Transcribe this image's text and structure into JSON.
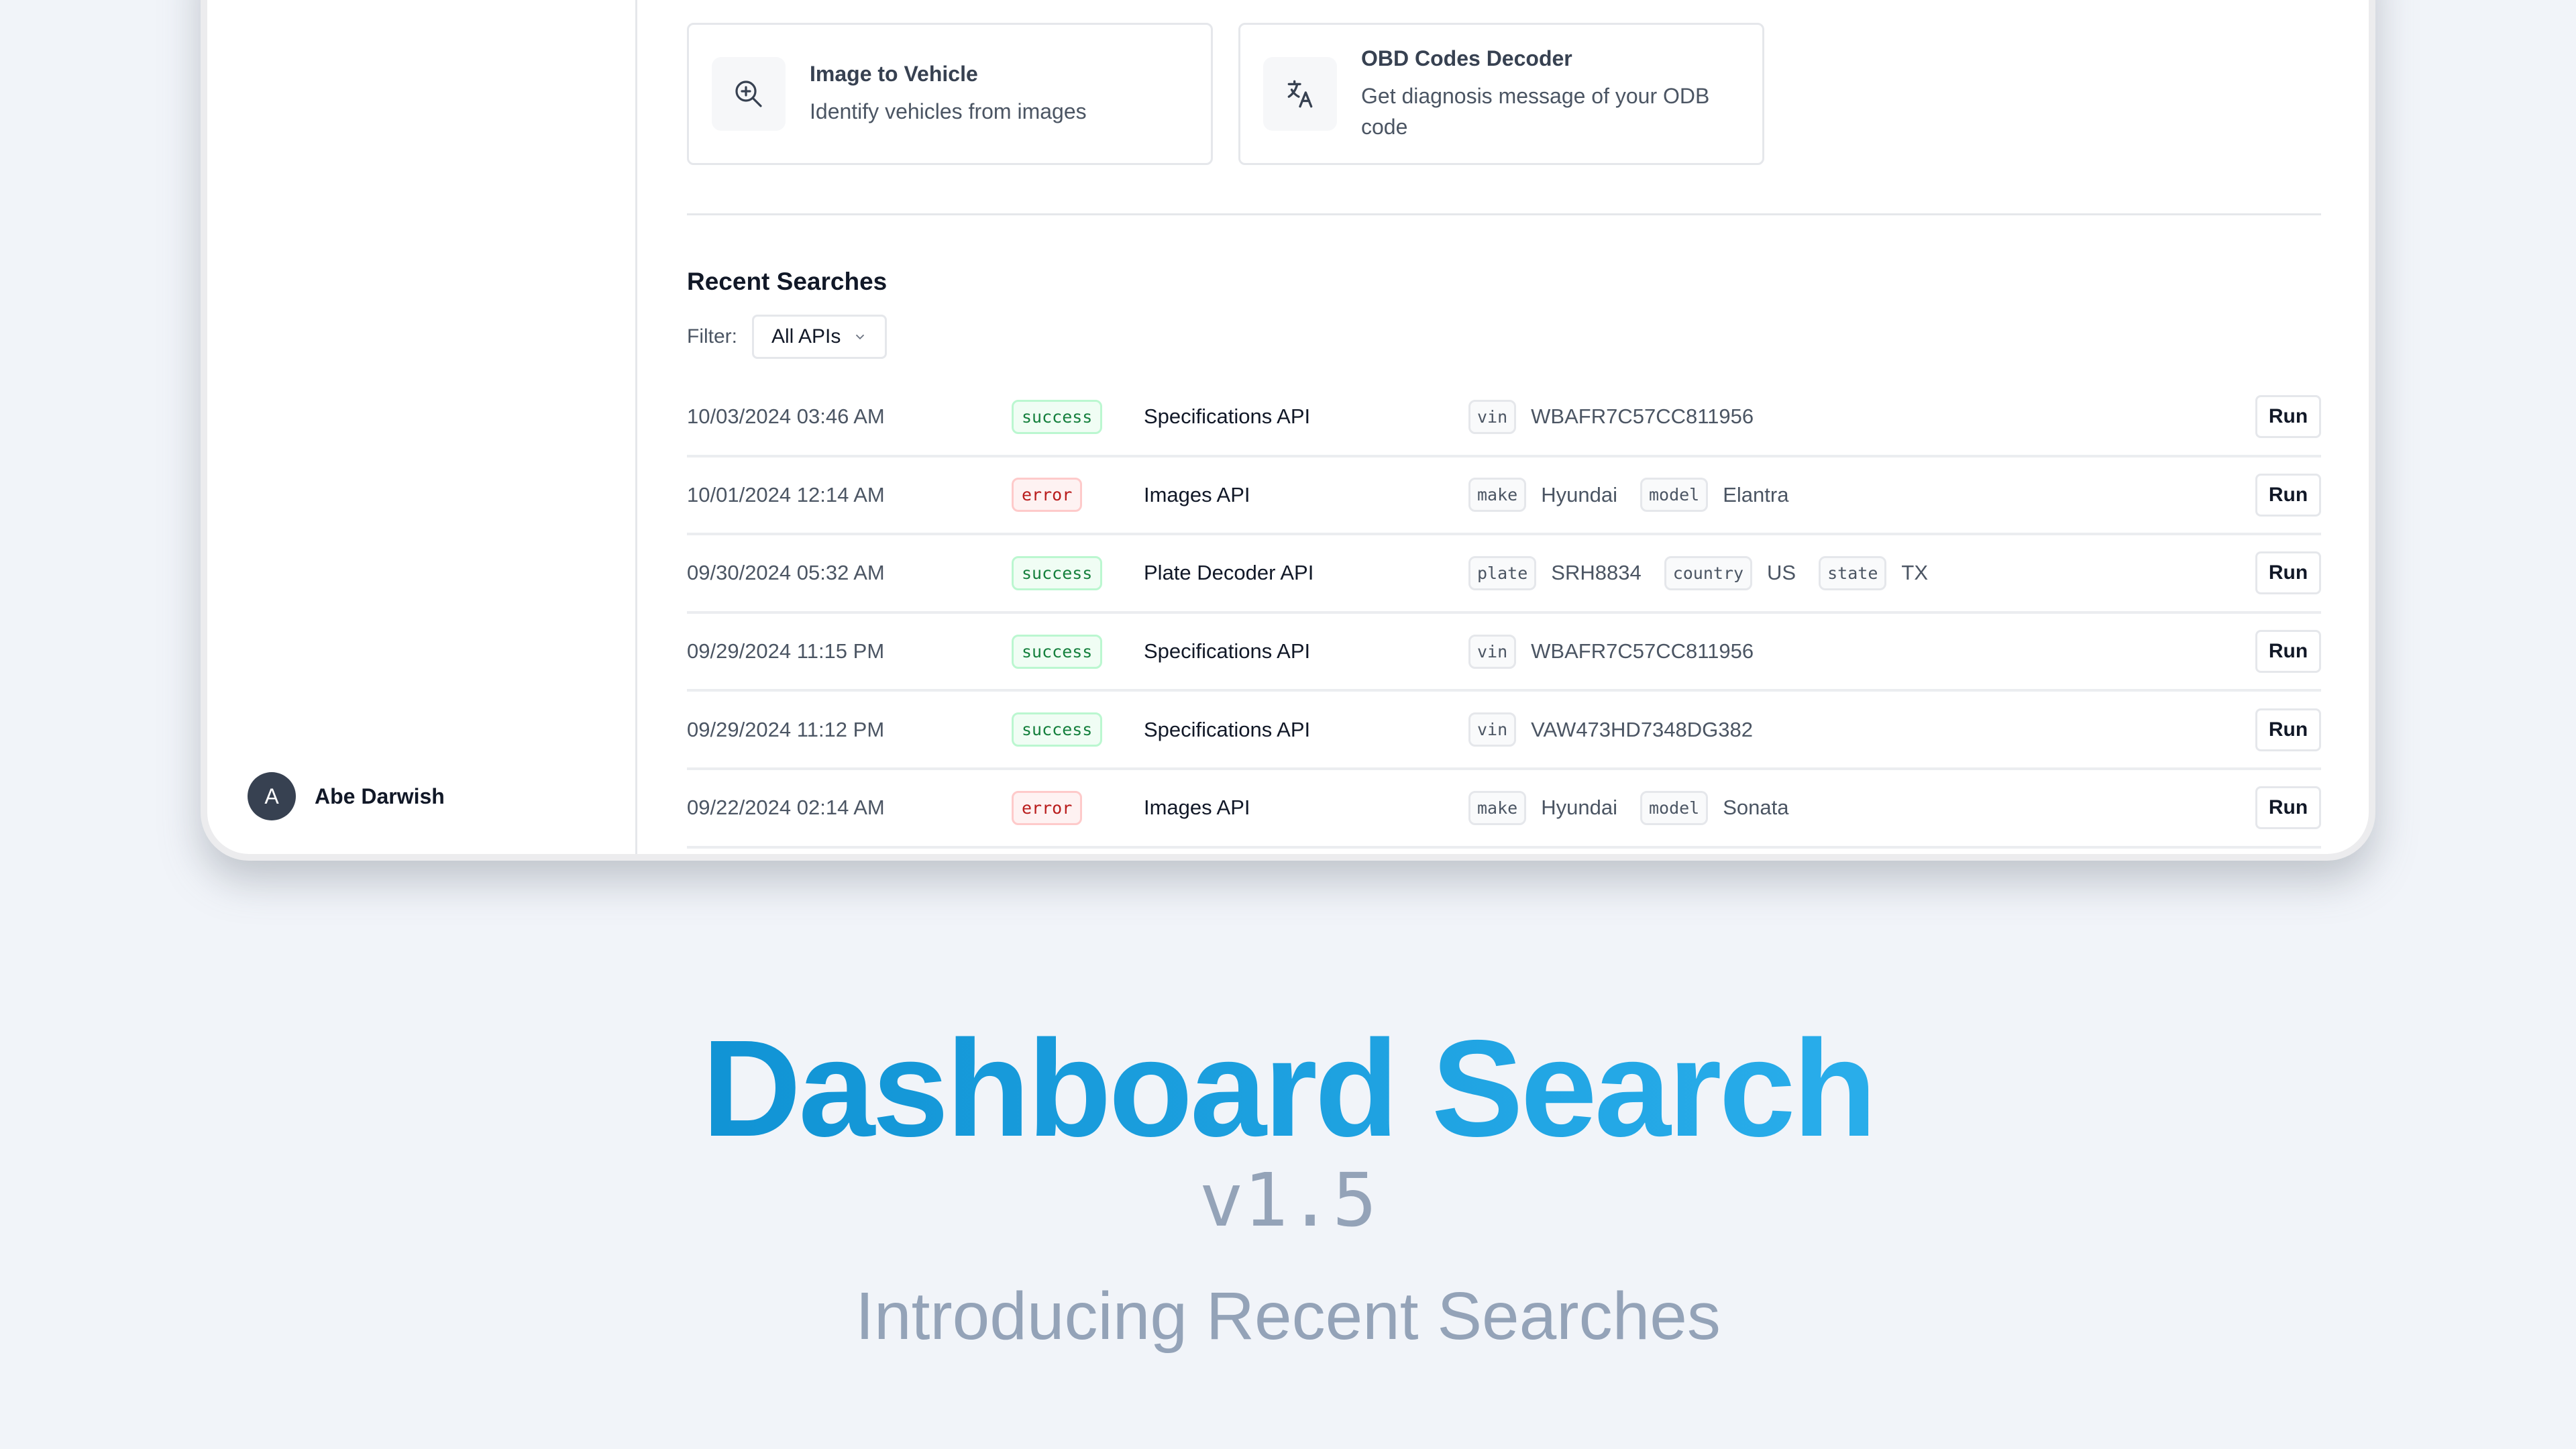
{
  "sidebar": {
    "user": {
      "initial": "A",
      "name": "Abe Darwish"
    }
  },
  "cards": [
    {
      "icon": "zoom-in-icon",
      "title": "Image to Vehicle",
      "desc": "Identify vehicles from images"
    },
    {
      "icon": "translate-icon",
      "title": "OBD Codes Decoder",
      "desc": "Get diagnosis message of your ODB code"
    }
  ],
  "recent": {
    "title": "Recent Searches",
    "filter_label": "Filter:",
    "filter_value": "All APIs",
    "run_label": "Run",
    "rows": [
      {
        "date": "10/03/2024 03:46 AM",
        "status": "success",
        "api": "Specifications API",
        "params": [
          {
            "k": "vin",
            "v": "WBAFR7C57CC811956"
          }
        ]
      },
      {
        "date": "10/01/2024 12:14 AM",
        "status": "error",
        "api": "Images API",
        "params": [
          {
            "k": "make",
            "v": "Hyundai"
          },
          {
            "k": "model",
            "v": "Elantra"
          }
        ]
      },
      {
        "date": "09/30/2024 05:32 AM",
        "status": "success",
        "api": "Plate Decoder API",
        "params": [
          {
            "k": "plate",
            "v": "SRH8834"
          },
          {
            "k": "country",
            "v": "US"
          },
          {
            "k": "state",
            "v": "TX"
          }
        ]
      },
      {
        "date": "09/29/2024 11:15 PM",
        "status": "success",
        "api": "Specifications API",
        "params": [
          {
            "k": "vin",
            "v": "WBAFR7C57CC811956"
          }
        ]
      },
      {
        "date": "09/29/2024 11:12 PM",
        "status": "success",
        "api": "Specifications API",
        "params": [
          {
            "k": "vin",
            "v": "VAW473HD7348DG382"
          }
        ]
      },
      {
        "date": "09/22/2024 02:14 AM",
        "status": "error",
        "api": "Images API",
        "params": [
          {
            "k": "make",
            "v": "Hyundai"
          },
          {
            "k": "model",
            "v": "Sonata"
          }
        ]
      }
    ]
  },
  "hero": {
    "title": "Dashboard Search",
    "version": "v1.5",
    "subtitle": "Introducing Recent Searches"
  },
  "colors": {
    "gradient_start": "#0284c7",
    "gradient_end": "#38bdf8",
    "success": "#15803d",
    "error": "#b91c1c",
    "muted": "#94a3b8"
  }
}
